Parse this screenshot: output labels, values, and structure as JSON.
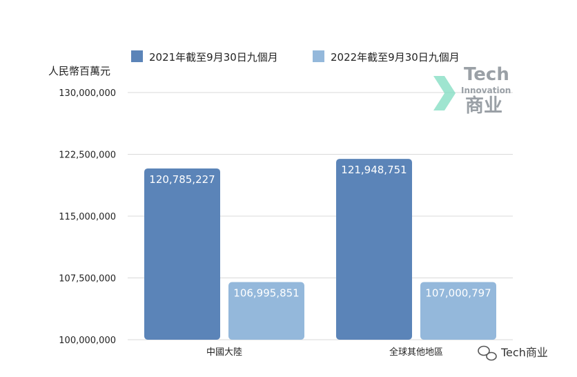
{
  "chart_data": {
    "type": "bar",
    "ylabel": "人民幣百萬元",
    "categories": [
      "中國大陸",
      "全球其他地區"
    ],
    "series": [
      {
        "name": "2021年截至9月30日九個月",
        "values": [
          120785227,
          121948751
        ],
        "labels": [
          "120,785,227",
          "121,948,751"
        ]
      },
      {
        "name": "2022年截至9月30日九個月",
        "values": [
          106995851,
          107000797
        ],
        "labels": [
          "106,995,851",
          "107,000,797"
        ]
      }
    ],
    "ylim": [
      100000000,
      130000000
    ],
    "yticks": [
      100000000,
      107500000,
      115000000,
      122500000,
      130000000
    ],
    "ytick_labels": [
      "100,000,000",
      "107,500,000",
      "115,000,000",
      "122,500,000",
      "130,000,000"
    ],
    "grid": true,
    "legend": "top"
  },
  "colors": {
    "series": [
      "#5b84b8",
      "#94b8db"
    ],
    "grid": "#d9d9d9",
    "watermark_arrow": "#7fdcc0"
  },
  "watermark": {
    "line1": "Tech",
    "line2": "Innovation",
    "line3": "商业"
  },
  "footer": {
    "icon": "wechat-icon",
    "text": "Tech商业"
  }
}
